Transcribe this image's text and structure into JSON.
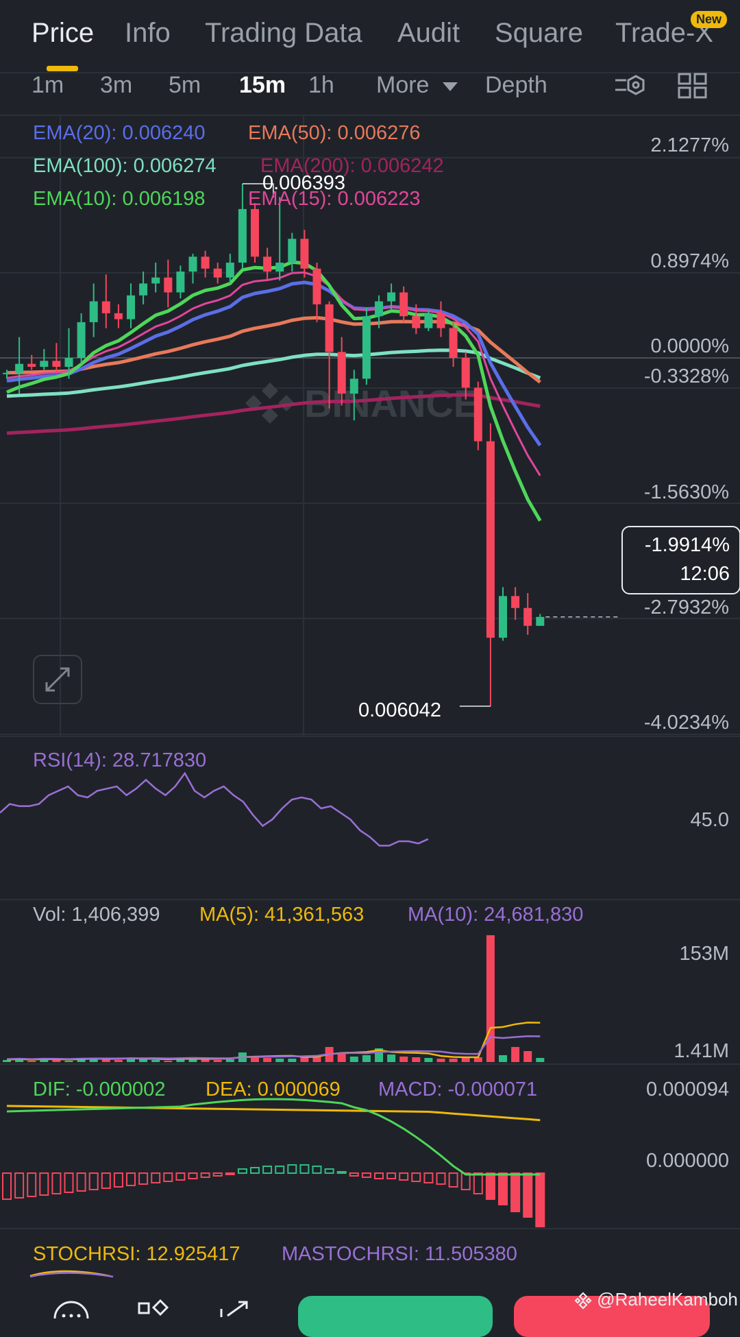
{
  "tabs": [
    "Price",
    "Info",
    "Trading Data",
    "Audit",
    "Square",
    "Trade-X"
  ],
  "new_badge": "New",
  "intervals": [
    "1m",
    "3m",
    "5m",
    "15m",
    "1h",
    "More",
    "Depth"
  ],
  "ema": {
    "ema20": "EMA(20): 0.006240",
    "ema50": "EMA(50): 0.006276",
    "ema100": "EMA(100): 0.006274",
    "ema200": "EMA(200): 0.006242",
    "ema10": "EMA(10): 0.006198",
    "ema15": "EMA(15): 0.006223"
  },
  "price_axis": [
    "2.1277%",
    "0.8974%",
    "0.0000%",
    "-0.3328%",
    "-1.5630%",
    "-2.7932%",
    "-4.0234%"
  ],
  "high_label": "0.006393",
  "low_label": "0.006042",
  "current": {
    "pct": "-1.9914%",
    "countdown": "12:06"
  },
  "watermark": "BINANCE",
  "rsi": {
    "label": "RSI(14): 28.717830",
    "axis": "45.0"
  },
  "vol": {
    "vol": "Vol: 1,406,399",
    "ma5": "MA(5): 41,361,563",
    "ma10": "MA(10): 24,681,830",
    "axis_top": "153M",
    "axis_bottom": "1.41M"
  },
  "macd": {
    "dif": "DIF: -0.000002",
    "dea": "DEA: 0.000069",
    "macd": "MACD: -0.000071",
    "axis_top": "0.000094",
    "axis_mid": "0.000000"
  },
  "stoch": {
    "stochrsi": "STOCHRSI: 12.925417",
    "mastochrsi": "MASTOCHRSI: 11.505380"
  },
  "credit": "@RaheelKamboh",
  "colors": {
    "up": "#2ebd85",
    "down": "#f6465d",
    "accent": "#f0b90b",
    "ema20": "#5b6ee8",
    "ema50": "#e8795a",
    "ema100": "#7fe0c2",
    "ema200": "#a3235e",
    "ema10": "#4fd65a",
    "ema15": "#e0479a"
  },
  "chart_data": {
    "type": "candlestick",
    "interval": "15m",
    "candles": [
      {
        "o": 0.006266,
        "h": 0.006268,
        "l": 0.006262,
        "c": 0.006266
      },
      {
        "o": 0.006266,
        "h": 0.00629,
        "l": 0.006252,
        "c": 0.006272
      },
      {
        "o": 0.006272,
        "h": 0.006278,
        "l": 0.006268,
        "c": 0.00627
      },
      {
        "o": 0.00627,
        "h": 0.006282,
        "l": 0.006268,
        "c": 0.006274
      },
      {
        "o": 0.006274,
        "h": 0.006286,
        "l": 0.006266,
        "c": 0.00627
      },
      {
        "o": 0.00627,
        "h": 0.006296,
        "l": 0.006262,
        "c": 0.006276
      },
      {
        "o": 0.006276,
        "h": 0.006306,
        "l": 0.006272,
        "c": 0.0063
      },
      {
        "o": 0.0063,
        "h": 0.006326,
        "l": 0.00629,
        "c": 0.006314
      },
      {
        "o": 0.006314,
        "h": 0.006332,
        "l": 0.006296,
        "c": 0.006306
      },
      {
        "o": 0.006306,
        "h": 0.006312,
        "l": 0.006296,
        "c": 0.006302
      },
      {
        "o": 0.006302,
        "h": 0.006326,
        "l": 0.006296,
        "c": 0.006318
      },
      {
        "o": 0.006318,
        "h": 0.006334,
        "l": 0.006312,
        "c": 0.006326
      },
      {
        "o": 0.006326,
        "h": 0.00634,
        "l": 0.00632,
        "c": 0.00633
      },
      {
        "o": 0.00633,
        "h": 0.006342,
        "l": 0.00631,
        "c": 0.00632
      },
      {
        "o": 0.00632,
        "h": 0.006338,
        "l": 0.006316,
        "c": 0.006334
      },
      {
        "o": 0.006334,
        "h": 0.006346,
        "l": 0.006326,
        "c": 0.006344
      },
      {
        "o": 0.006344,
        "h": 0.006348,
        "l": 0.00633,
        "c": 0.006336
      },
      {
        "o": 0.006336,
        "h": 0.00634,
        "l": 0.006326,
        "c": 0.00633
      },
      {
        "o": 0.00633,
        "h": 0.006346,
        "l": 0.006326,
        "c": 0.00634
      },
      {
        "o": 0.00634,
        "h": 0.006393,
        "l": 0.006336,
        "c": 0.006376
      },
      {
        "o": 0.006376,
        "h": 0.00638,
        "l": 0.00634,
        "c": 0.006344
      },
      {
        "o": 0.006344,
        "h": 0.00635,
        "l": 0.006328,
        "c": 0.006334
      },
      {
        "o": 0.006334,
        "h": 0.006384,
        "l": 0.006328,
        "c": 0.00634
      },
      {
        "o": 0.00634,
        "h": 0.00636,
        "l": 0.006334,
        "c": 0.006356
      },
      {
        "o": 0.006356,
        "h": 0.006362,
        "l": 0.00633,
        "c": 0.006336
      },
      {
        "o": 0.006336,
        "h": 0.00634,
        "l": 0.0063,
        "c": 0.006312
      },
      {
        "o": 0.006312,
        "h": 0.006314,
        "l": 0.006242,
        "c": 0.00628
      },
      {
        "o": 0.00628,
        "h": 0.00629,
        "l": 0.006244,
        "c": 0.006252
      },
      {
        "o": 0.006252,
        "h": 0.006268,
        "l": 0.006234,
        "c": 0.006262
      },
      {
        "o": 0.006262,
        "h": 0.00631,
        "l": 0.006258,
        "c": 0.006304
      },
      {
        "o": 0.006304,
        "h": 0.006318,
        "l": 0.006296,
        "c": 0.006314
      },
      {
        "o": 0.006314,
        "h": 0.006326,
        "l": 0.006308,
        "c": 0.00632
      },
      {
        "o": 0.00632,
        "h": 0.006324,
        "l": 0.0063,
        "c": 0.006304
      },
      {
        "o": 0.006304,
        "h": 0.006312,
        "l": 0.006292,
        "c": 0.006296
      },
      {
        "o": 0.006296,
        "h": 0.006308,
        "l": 0.006294,
        "c": 0.006306
      },
      {
        "o": 0.006306,
        "h": 0.006314,
        "l": 0.00629,
        "c": 0.006296
      },
      {
        "o": 0.006296,
        "h": 0.0063,
        "l": 0.00627,
        "c": 0.006276
      },
      {
        "o": 0.006276,
        "h": 0.00628,
        "l": 0.006248,
        "c": 0.006256
      },
      {
        "o": 0.006256,
        "h": 0.00626,
        "l": 0.006214,
        "c": 0.00622
      },
      {
        "o": 0.00622,
        "h": 0.006232,
        "l": 0.006042,
        "c": 0.006088
      },
      {
        "o": 0.006088,
        "h": 0.006122,
        "l": 0.006086,
        "c": 0.006116
      },
      {
        "o": 0.006116,
        "h": 0.006122,
        "l": 0.0061,
        "c": 0.006108
      },
      {
        "o": 0.006108,
        "h": 0.006118,
        "l": 0.00609,
        "c": 0.006096
      },
      {
        "o": 0.006096,
        "h": 0.006104,
        "l": 0.006096,
        "c": 0.006102
      }
    ]
  }
}
